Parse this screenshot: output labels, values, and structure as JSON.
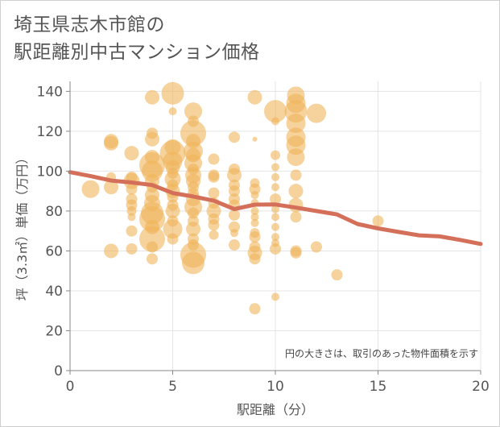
{
  "title_line1": "埼玉県志木市館の",
  "title_line2": "駅距離別中古マンション価格",
  "chart_data": {
    "type": "scatter",
    "xlabel": "駅距離（分）",
    "ylabel": "坪（3.3㎡）単価（万円）",
    "xlim": [
      0,
      20
    ],
    "ylim": [
      0,
      145
    ],
    "xticks": [
      0,
      5,
      10,
      15,
      20
    ],
    "yticks": [
      0,
      20,
      40,
      60,
      80,
      100,
      120,
      140
    ],
    "grid": true,
    "annotation": "円の大きさは、取引のあった物件面積を示す",
    "bubble_color": "#f0b45a",
    "line_color": "#d4705a",
    "bubbles": [
      {
        "x": 1,
        "y": 91,
        "r": 11
      },
      {
        "x": 2,
        "y": 115,
        "r": 9
      },
      {
        "x": 2,
        "y": 114,
        "r": 9
      },
      {
        "x": 2,
        "y": 97,
        "r": 6
      },
      {
        "x": 2,
        "y": 92,
        "r": 9
      },
      {
        "x": 2,
        "y": 60,
        "r": 9
      },
      {
        "x": 3,
        "y": 109,
        "r": 9
      },
      {
        "x": 3,
        "y": 97,
        "r": 7
      },
      {
        "x": 3,
        "y": 95,
        "r": 10
      },
      {
        "x": 3,
        "y": 91,
        "r": 7
      },
      {
        "x": 3,
        "y": 86,
        "r": 7
      },
      {
        "x": 3,
        "y": 83,
        "r": 7
      },
      {
        "x": 3,
        "y": 80,
        "r": 6
      },
      {
        "x": 3,
        "y": 77,
        "r": 5
      },
      {
        "x": 3,
        "y": 70,
        "r": 7
      },
      {
        "x": 3,
        "y": 61,
        "r": 7
      },
      {
        "x": 4,
        "y": 137,
        "r": 9
      },
      {
        "x": 4,
        "y": 119,
        "r": 7
      },
      {
        "x": 4,
        "y": 116,
        "r": 9
      },
      {
        "x": 4,
        "y": 107,
        "r": 9
      },
      {
        "x": 4,
        "y": 103,
        "r": 16
      },
      {
        "x": 4,
        "y": 100,
        "r": 13
      },
      {
        "x": 4,
        "y": 95,
        "r": 9
      },
      {
        "x": 4,
        "y": 92,
        "r": 7
      },
      {
        "x": 4,
        "y": 88,
        "r": 9
      },
      {
        "x": 4,
        "y": 84,
        "r": 10
      },
      {
        "x": 4,
        "y": 79,
        "r": 14
      },
      {
        "x": 4,
        "y": 76,
        "r": 16
      },
      {
        "x": 4,
        "y": 72,
        "r": 9
      },
      {
        "x": 4,
        "y": 66,
        "r": 16
      },
      {
        "x": 4,
        "y": 62,
        "r": 7
      },
      {
        "x": 4,
        "y": 56,
        "r": 7
      },
      {
        "x": 5,
        "y": 139,
        "r": 14
      },
      {
        "x": 5,
        "y": 130,
        "r": 5
      },
      {
        "x": 5,
        "y": 112,
        "r": 10
      },
      {
        "x": 5,
        "y": 109,
        "r": 16
      },
      {
        "x": 5,
        "y": 105,
        "r": 12
      },
      {
        "x": 5,
        "y": 102,
        "r": 9
      },
      {
        "x": 5,
        "y": 99,
        "r": 7
      },
      {
        "x": 5,
        "y": 96,
        "r": 10
      },
      {
        "x": 5,
        "y": 93,
        "r": 7
      },
      {
        "x": 5,
        "y": 90,
        "r": 9
      },
      {
        "x": 5,
        "y": 87,
        "r": 7
      },
      {
        "x": 5,
        "y": 83,
        "r": 7
      },
      {
        "x": 5,
        "y": 80,
        "r": 9
      },
      {
        "x": 5,
        "y": 75,
        "r": 7
      },
      {
        "x": 5,
        "y": 71,
        "r": 12
      },
      {
        "x": 5,
        "y": 66,
        "r": 7
      },
      {
        "x": 6,
        "y": 130,
        "r": 11
      },
      {
        "x": 6,
        "y": 125,
        "r": 7
      },
      {
        "x": 6,
        "y": 119,
        "r": 16
      },
      {
        "x": 6,
        "y": 115,
        "r": 9
      },
      {
        "x": 6,
        "y": 110,
        "r": 12
      },
      {
        "x": 6,
        "y": 108,
        "r": 9
      },
      {
        "x": 6,
        "y": 104,
        "r": 11
      },
      {
        "x": 6,
        "y": 101,
        "r": 7
      },
      {
        "x": 6,
        "y": 98,
        "r": 10
      },
      {
        "x": 6,
        "y": 95,
        "r": 9
      },
      {
        "x": 6,
        "y": 92,
        "r": 7
      },
      {
        "x": 6,
        "y": 89,
        "r": 7
      },
      {
        "x": 6,
        "y": 86,
        "r": 9
      },
      {
        "x": 6,
        "y": 82,
        "r": 11
      },
      {
        "x": 6,
        "y": 79,
        "r": 7
      },
      {
        "x": 6,
        "y": 75,
        "r": 7
      },
      {
        "x": 6,
        "y": 71,
        "r": 9
      },
      {
        "x": 6,
        "y": 66,
        "r": 7
      },
      {
        "x": 6,
        "y": 63,
        "r": 7
      },
      {
        "x": 6,
        "y": 58,
        "r": 16
      },
      {
        "x": 6,
        "y": 54,
        "r": 14
      },
      {
        "x": 7,
        "y": 106,
        "r": 7
      },
      {
        "x": 7,
        "y": 98,
        "r": 7
      },
      {
        "x": 7,
        "y": 97,
        "r": 7
      },
      {
        "x": 7,
        "y": 89,
        "r": 7
      },
      {
        "x": 7,
        "y": 84,
        "r": 7
      },
      {
        "x": 7,
        "y": 80,
        "r": 9
      },
      {
        "x": 7,
        "y": 76,
        "r": 7
      },
      {
        "x": 7,
        "y": 73,
        "r": 7
      },
      {
        "x": 7,
        "y": 68,
        "r": 6
      },
      {
        "x": 8,
        "y": 117,
        "r": 7
      },
      {
        "x": 8,
        "y": 101,
        "r": 7
      },
      {
        "x": 8,
        "y": 98,
        "r": 9
      },
      {
        "x": 8,
        "y": 93,
        "r": 7
      },
      {
        "x": 8,
        "y": 90,
        "r": 7
      },
      {
        "x": 8,
        "y": 86,
        "r": 7
      },
      {
        "x": 8,
        "y": 83,
        "r": 7
      },
      {
        "x": 8,
        "y": 78,
        "r": 7
      },
      {
        "x": 8,
        "y": 72,
        "r": 7
      },
      {
        "x": 8,
        "y": 69,
        "r": 5
      },
      {
        "x": 8,
        "y": 63,
        "r": 7
      },
      {
        "x": 9,
        "y": 137,
        "r": 9
      },
      {
        "x": 9,
        "y": 116,
        "r": 3
      },
      {
        "x": 9,
        "y": 94,
        "r": 6
      },
      {
        "x": 9,
        "y": 91,
        "r": 7
      },
      {
        "x": 9,
        "y": 88,
        "r": 5
      },
      {
        "x": 9,
        "y": 84,
        "r": 5
      },
      {
        "x": 9,
        "y": 80,
        "r": 5
      },
      {
        "x": 9,
        "y": 77,
        "r": 5
      },
      {
        "x": 9,
        "y": 74,
        "r": 5
      },
      {
        "x": 9,
        "y": 69,
        "r": 6
      },
      {
        "x": 9,
        "y": 67,
        "r": 7
      },
      {
        "x": 9,
        "y": 62,
        "r": 7
      },
      {
        "x": 9,
        "y": 59,
        "r": 9
      },
      {
        "x": 9,
        "y": 56,
        "r": 7
      },
      {
        "x": 9,
        "y": 31,
        "r": 7
      },
      {
        "x": 10,
        "y": 130,
        "r": 14
      },
      {
        "x": 10,
        "y": 125,
        "r": 5
      },
      {
        "x": 10,
        "y": 108,
        "r": 6
      },
      {
        "x": 10,
        "y": 102,
        "r": 5
      },
      {
        "x": 10,
        "y": 97,
        "r": 5
      },
      {
        "x": 10,
        "y": 92,
        "r": 5
      },
      {
        "x": 10,
        "y": 86,
        "r": 7
      },
      {
        "x": 10,
        "y": 81,
        "r": 5
      },
      {
        "x": 10,
        "y": 77,
        "r": 5
      },
      {
        "x": 10,
        "y": 72,
        "r": 5
      },
      {
        "x": 10,
        "y": 67,
        "r": 5
      },
      {
        "x": 10,
        "y": 64,
        "r": 5
      },
      {
        "x": 10,
        "y": 61,
        "r": 7
      },
      {
        "x": 10,
        "y": 37,
        "r": 5
      },
      {
        "x": 11,
        "y": 138,
        "r": 11
      },
      {
        "x": 11,
        "y": 134,
        "r": 12
      },
      {
        "x": 11,
        "y": 130,
        "r": 14
      },
      {
        "x": 11,
        "y": 124,
        "r": 12
      },
      {
        "x": 11,
        "y": 117,
        "r": 12
      },
      {
        "x": 11,
        "y": 113,
        "r": 12
      },
      {
        "x": 11,
        "y": 107,
        "r": 11
      },
      {
        "x": 11,
        "y": 98,
        "r": 7
      },
      {
        "x": 11,
        "y": 90,
        "r": 9
      },
      {
        "x": 11,
        "y": 83,
        "r": 9
      },
      {
        "x": 11,
        "y": 77,
        "r": 7
      },
      {
        "x": 11,
        "y": 60,
        "r": 7
      },
      {
        "x": 11,
        "y": 59,
        "r": 7
      },
      {
        "x": 12,
        "y": 129,
        "r": 12
      },
      {
        "x": 12,
        "y": 62,
        "r": 7
      },
      {
        "x": 13,
        "y": 48,
        "r": 7
      },
      {
        "x": 15,
        "y": 75,
        "r": 7
      }
    ],
    "trend_x": [
      0,
      1,
      2,
      3,
      4,
      5,
      6,
      7,
      8,
      9,
      10,
      11,
      12,
      13,
      14,
      15,
      16,
      17,
      18,
      19,
      20
    ],
    "trend_y": [
      99.5,
      97.5,
      95.3,
      94.3,
      93,
      89,
      87.3,
      85.2,
      81,
      83.2,
      83.3,
      81.7,
      80,
      78.3,
      73.5,
      71.3,
      69.5,
      67.8,
      67.3,
      65.5,
      63.5
    ]
  }
}
